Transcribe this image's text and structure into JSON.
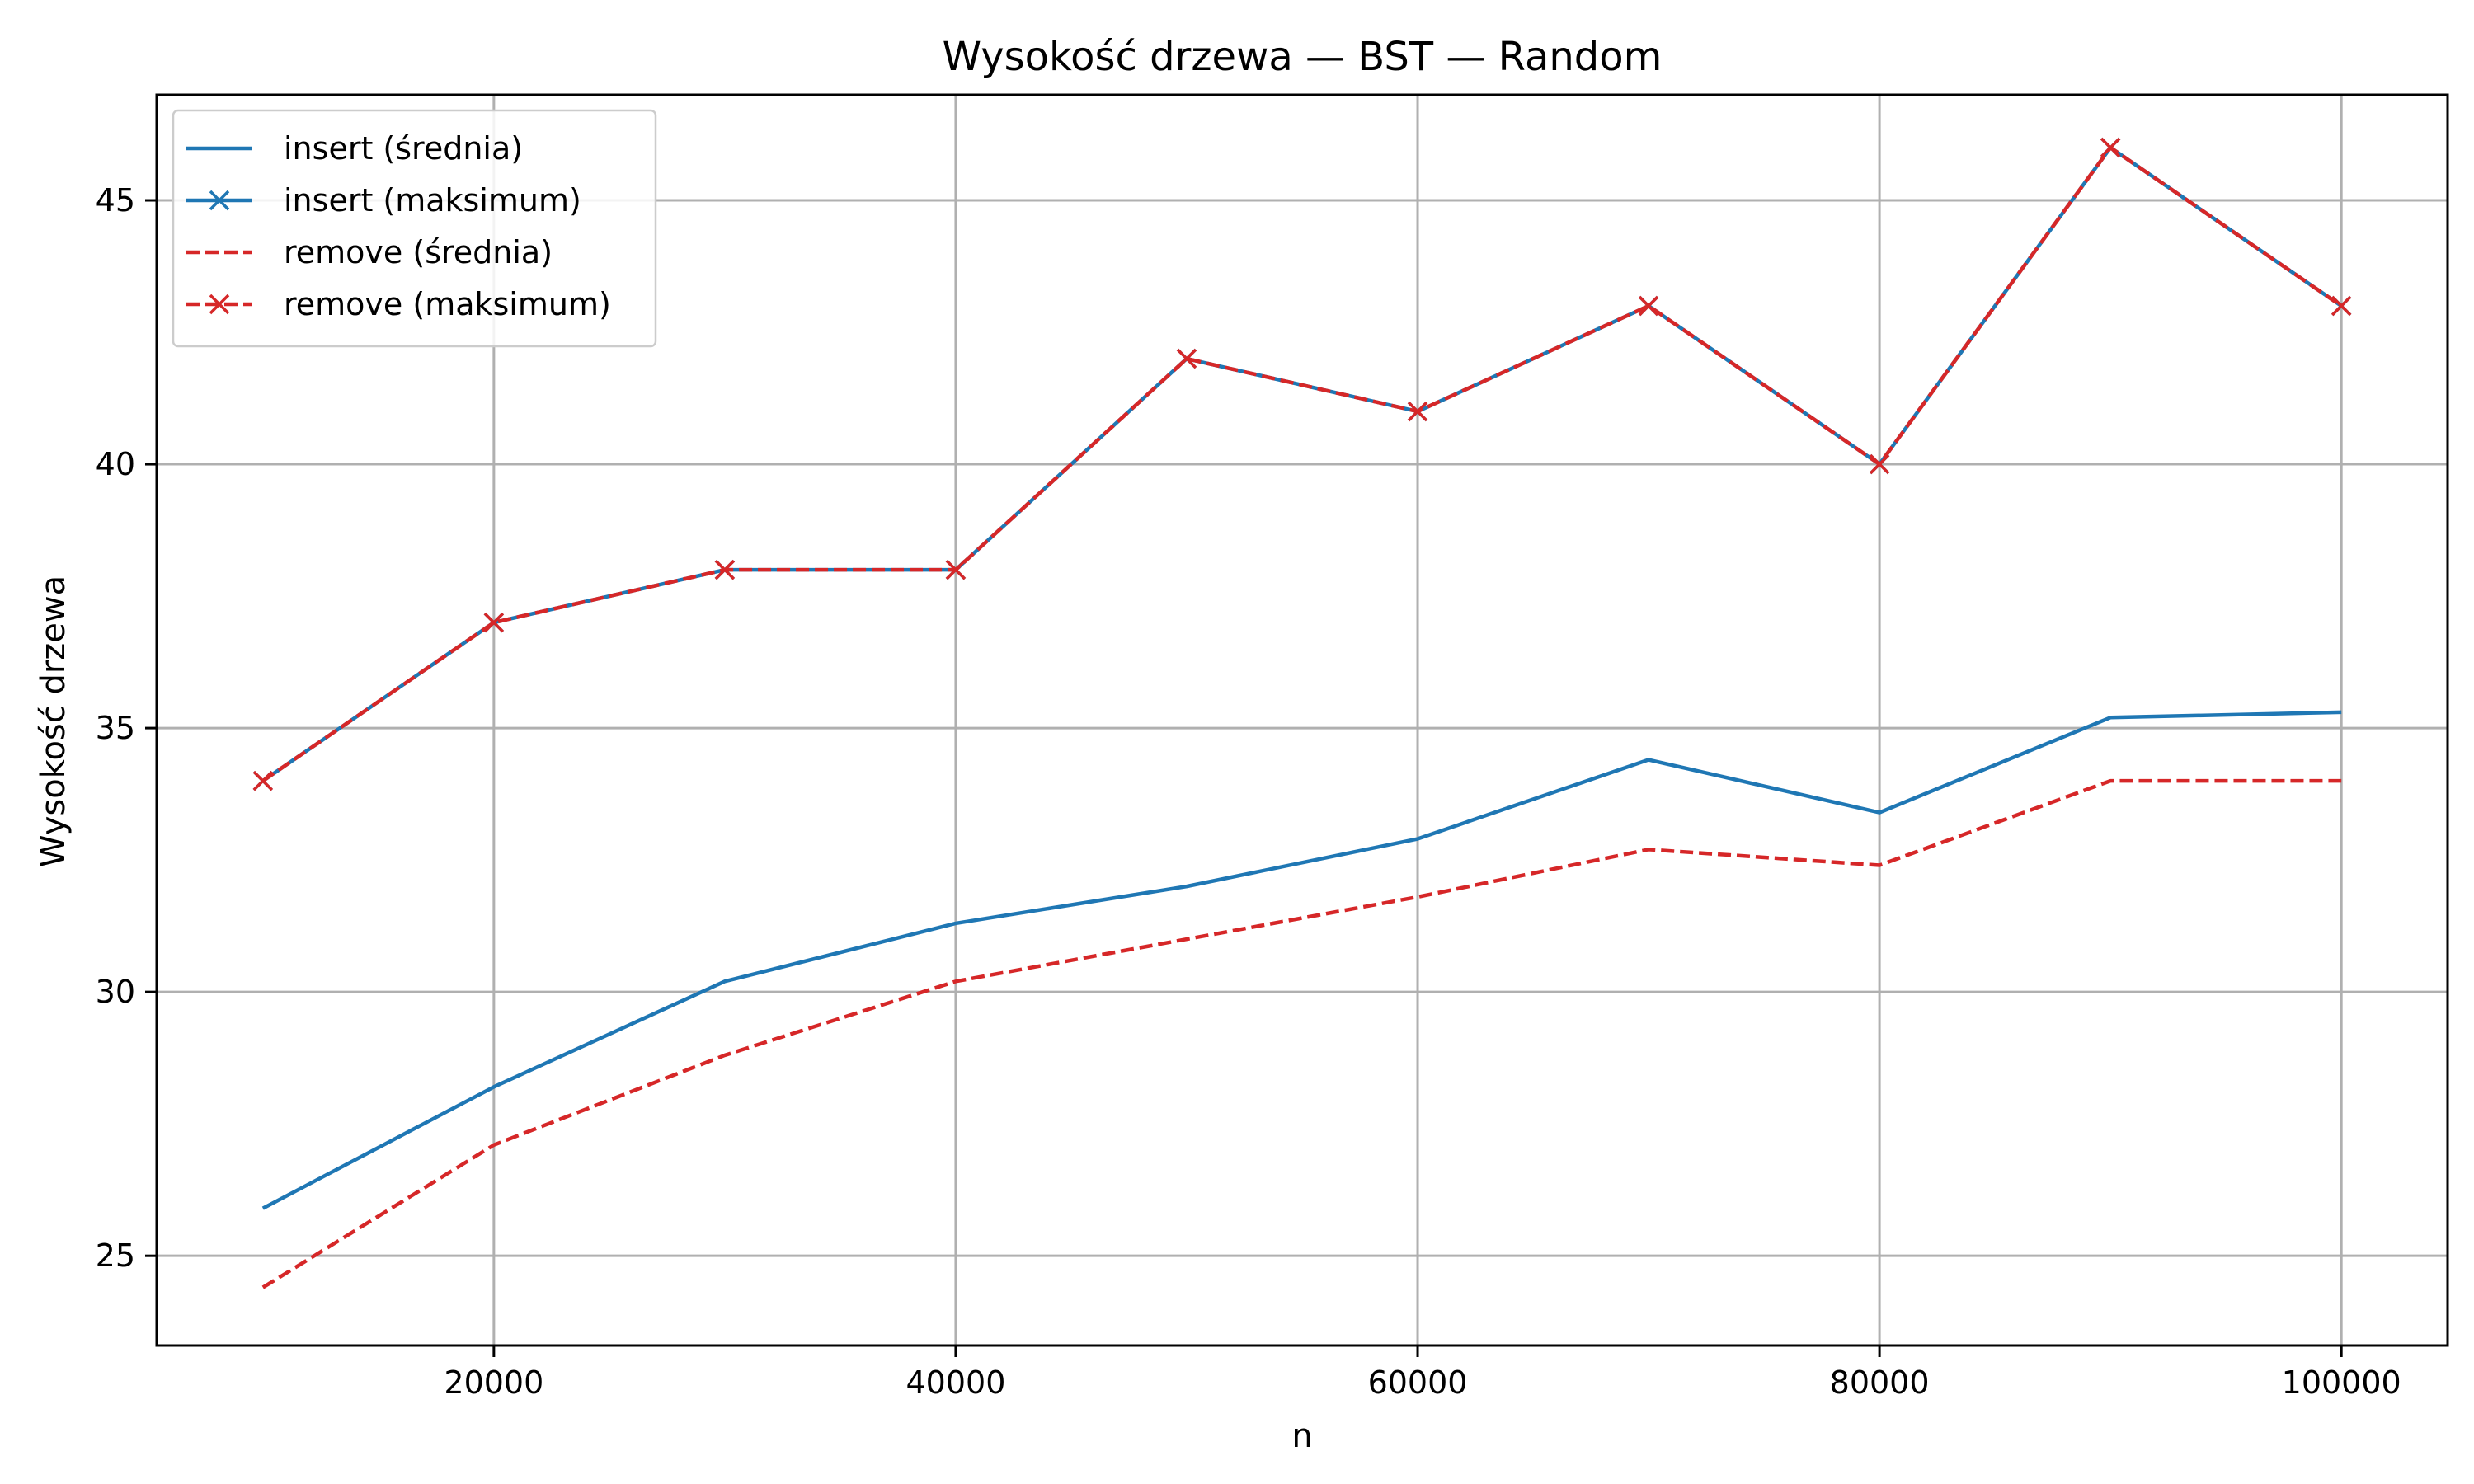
{
  "chart_data": {
    "type": "line",
    "title": "Wysokość drzewa — BST — Random",
    "xlabel": "n",
    "ylabel": "Wysokość drzewa",
    "xlim": [
      5400,
      104600
    ],
    "ylim": [
      23.3,
      47.0
    ],
    "xticks": [
      20000,
      40000,
      60000,
      80000,
      100000
    ],
    "yticks": [
      25,
      30,
      35,
      40,
      45
    ],
    "grid": true,
    "legend_position": "top-left",
    "x": [
      10000,
      20000,
      30000,
      40000,
      50000,
      60000,
      70000,
      80000,
      90000,
      100000
    ],
    "series": [
      {
        "name": "insert (średnia)",
        "color": "#1f77b4",
        "style": "solid",
        "marker": "none",
        "values": [
          25.9,
          28.2,
          30.2,
          31.3,
          32.0,
          32.9,
          34.4,
          33.4,
          35.2,
          35.3
        ]
      },
      {
        "name": "insert (maksimum)",
        "color": "#1f77b4",
        "style": "solid",
        "marker": "x",
        "values": [
          34,
          37,
          38,
          38,
          42,
          41,
          43,
          40,
          46,
          43
        ]
      },
      {
        "name": "remove (średnia)",
        "color": "#d62728",
        "style": "dashed",
        "marker": "none",
        "values": [
          24.4,
          27.1,
          28.8,
          30.2,
          31.0,
          31.8,
          32.7,
          32.4,
          34.0,
          34.0
        ]
      },
      {
        "name": "remove (maksimum)",
        "color": "#d62728",
        "style": "dashed",
        "marker": "x",
        "values": [
          34,
          37,
          38,
          38,
          42,
          41,
          43,
          40,
          46,
          43
        ]
      }
    ]
  }
}
